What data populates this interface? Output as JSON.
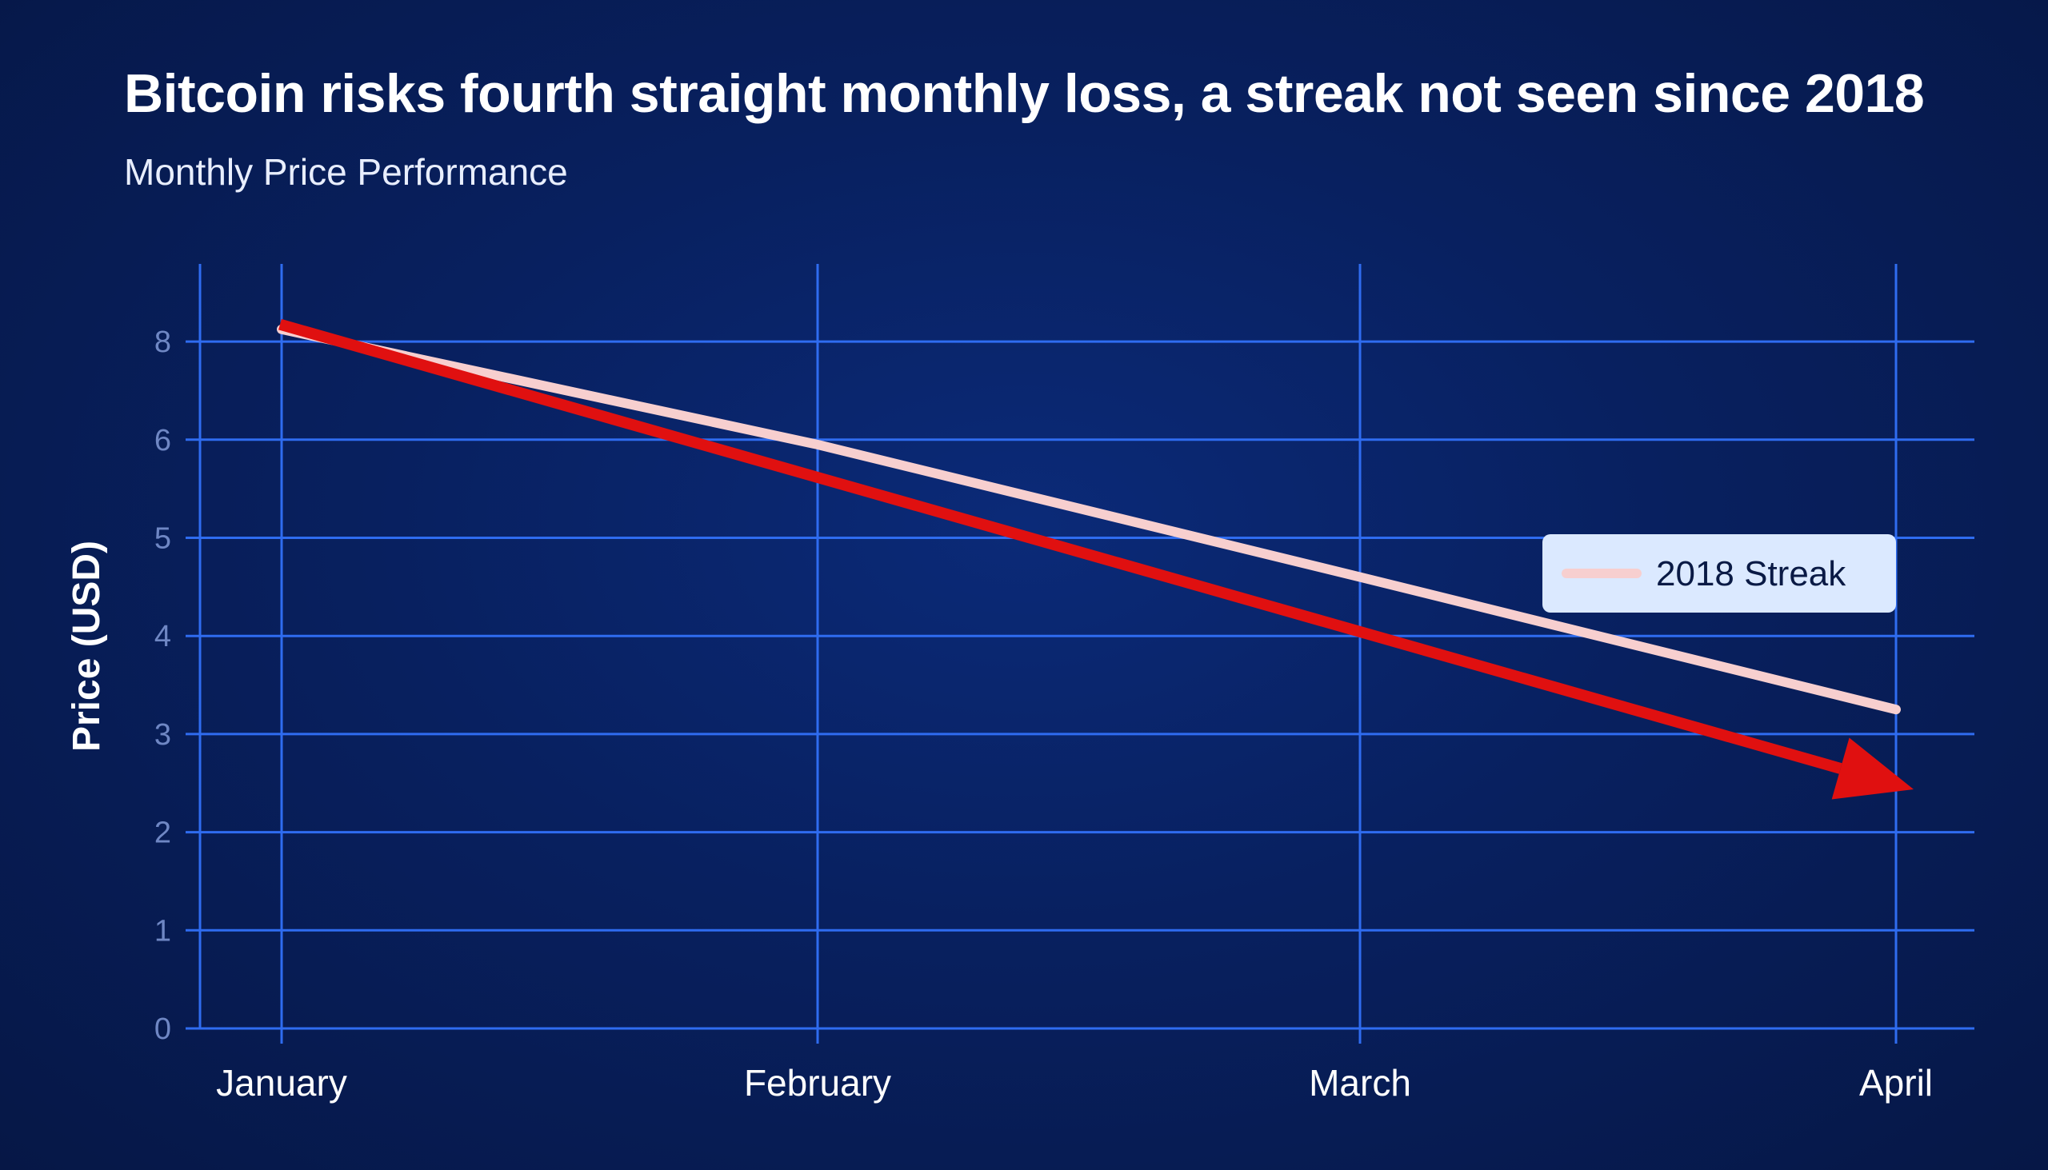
{
  "chart_data": {
    "type": "line",
    "title": "Bitcoin risks fourth straight monthly loss, a streak not seen since 2018",
    "subtitle": "Monthly Price Performance",
    "ylabel": "Price (USD)",
    "xlabel": "",
    "categories": [
      "January",
      "February",
      "March",
      "April"
    ],
    "y_ticks": [
      0,
      1,
      2,
      3,
      4,
      5,
      6,
      8
    ],
    "grid": true,
    "legend_position": "right",
    "series": [
      {
        "name": "2018 Streak",
        "color": "#f7cfcf",
        "values": [
          8.25,
          5.95,
          4.6,
          3.25
        ]
      }
    ],
    "trend_arrow": {
      "color": "#e01010",
      "start": {
        "x": "January",
        "y": 8.35
      },
      "end": {
        "x": "April",
        "y": 2.6
      }
    }
  }
}
